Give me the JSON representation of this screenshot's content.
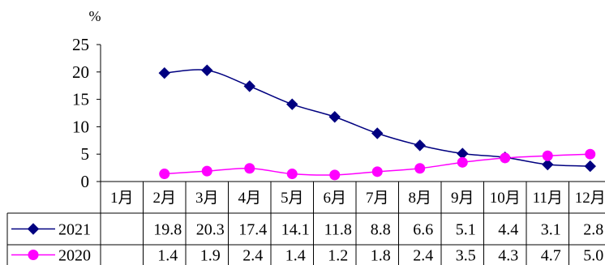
{
  "chart_data": {
    "type": "line",
    "ylabel": "%",
    "ylim": [
      0,
      25
    ],
    "yticks": [
      0,
      5,
      10,
      15,
      20,
      25
    ],
    "categories": [
      "1月",
      "2月",
      "3月",
      "4月",
      "5月",
      "6月",
      "7月",
      "8月",
      "9月",
      "10月",
      "11月",
      "12月"
    ],
    "series": [
      {
        "name": "2021",
        "color": "#000080",
        "marker": "diamond",
        "values": [
          null,
          19.8,
          20.3,
          17.4,
          14.1,
          11.8,
          8.8,
          6.6,
          5.1,
          4.4,
          3.1,
          2.8
        ]
      },
      {
        "name": "2020",
        "color": "#ff00ff",
        "marker": "circle",
        "values": [
          null,
          1.4,
          1.9,
          2.4,
          1.4,
          1.2,
          1.8,
          2.4,
          3.5,
          4.3,
          4.7,
          5.0
        ]
      }
    ],
    "grid": false,
    "legend": "bottom-left data table",
    "data_table": true
  }
}
